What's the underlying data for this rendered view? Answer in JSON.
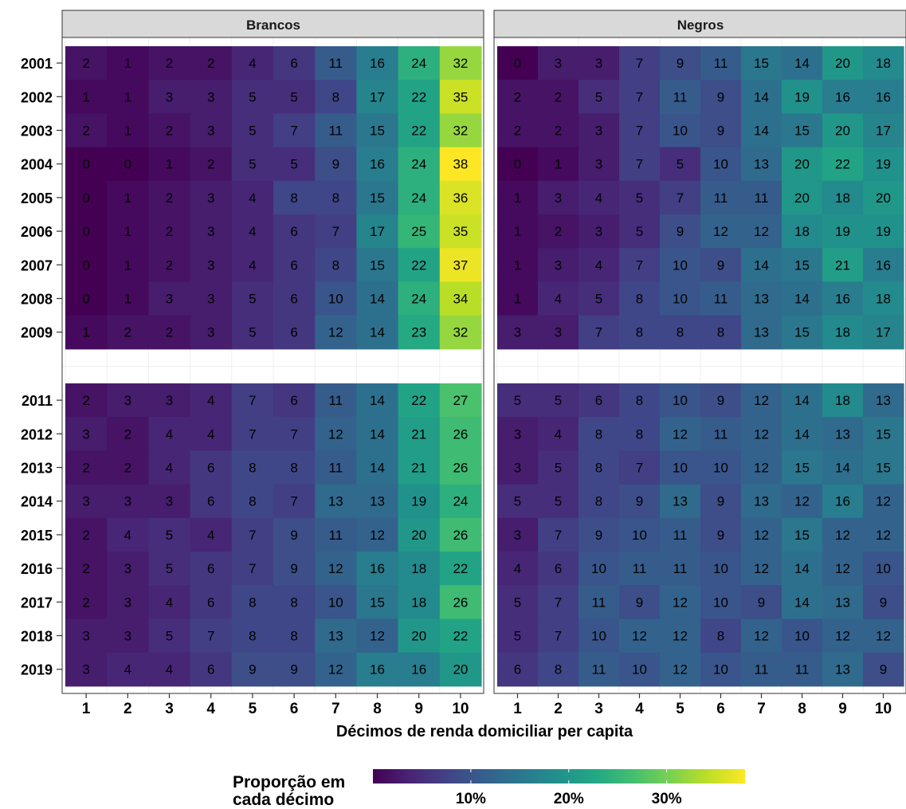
{
  "chart_data": {
    "type": "heatmap",
    "xlabel": "Décimos de renda domiciliar per capita",
    "x_categories": [
      "1",
      "2",
      "3",
      "4",
      "5",
      "6",
      "7",
      "8",
      "9",
      "10"
    ],
    "legend": {
      "title_lines": [
        "Proporção em",
        "cada décimo"
      ],
      "tick_values": [
        10,
        20,
        30
      ],
      "tick_labels": [
        "10%",
        "20%",
        "30%"
      ],
      "range": [
        0,
        38
      ],
      "placement": "bottom"
    },
    "facets": [
      {
        "name": "Brancos",
        "groups": [
          {
            "years": [
              "2001",
              "2002",
              "2003",
              "2004",
              "2005",
              "2006",
              "2007",
              "2008",
              "2009"
            ],
            "values": [
              [
                2,
                1,
                2,
                2,
                4,
                6,
                11,
                16,
                24,
                32
              ],
              [
                1,
                1,
                3,
                3,
                5,
                5,
                8,
                17,
                22,
                35
              ],
              [
                2,
                1,
                2,
                3,
                5,
                7,
                11,
                15,
                22,
                32
              ],
              [
                0,
                0,
                1,
                2,
                5,
                5,
                9,
                16,
                24,
                38
              ],
              [
                0,
                1,
                2,
                3,
                4,
                8,
                8,
                15,
                24,
                36
              ],
              [
                0,
                1,
                2,
                3,
                4,
                6,
                7,
                17,
                25,
                35
              ],
              [
                0,
                1,
                2,
                3,
                4,
                6,
                8,
                15,
                22,
                37
              ],
              [
                0,
                1,
                3,
                3,
                5,
                6,
                10,
                14,
                24,
                34
              ],
              [
                1,
                2,
                2,
                3,
                5,
                6,
                12,
                14,
                23,
                32
              ]
            ]
          },
          {
            "years": [
              "2011",
              "2012",
              "2013",
              "2014",
              "2015",
              "2016",
              "2017",
              "2018",
              "2019"
            ],
            "values": [
              [
                2,
                3,
                3,
                4,
                7,
                6,
                11,
                14,
                22,
                27
              ],
              [
                3,
                2,
                4,
                4,
                7,
                7,
                12,
                14,
                21,
                26
              ],
              [
                2,
                2,
                4,
                6,
                8,
                8,
                11,
                14,
                21,
                26
              ],
              [
                3,
                3,
                3,
                6,
                8,
                7,
                13,
                13,
                19,
                24
              ],
              [
                2,
                4,
                5,
                4,
                7,
                9,
                11,
                12,
                20,
                26
              ],
              [
                2,
                3,
                5,
                6,
                7,
                9,
                12,
                16,
                18,
                22
              ],
              [
                2,
                3,
                4,
                6,
                8,
                8,
                10,
                15,
                18,
                26
              ],
              [
                3,
                3,
                5,
                7,
                8,
                8,
                13,
                12,
                20,
                22
              ],
              [
                3,
                4,
                4,
                6,
                9,
                9,
                12,
                16,
                16,
                20
              ]
            ]
          }
        ]
      },
      {
        "name": "Negros",
        "groups": [
          {
            "years": [
              "2001",
              "2002",
              "2003",
              "2004",
              "2005",
              "2006",
              "2007",
              "2008",
              "2009"
            ],
            "values": [
              [
                0,
                3,
                3,
                7,
                9,
                11,
                15,
                14,
                20,
                18
              ],
              [
                2,
                2,
                5,
                7,
                11,
                9,
                14,
                19,
                16,
                16
              ],
              [
                2,
                2,
                3,
                7,
                10,
                9,
                14,
                15,
                20,
                17
              ],
              [
                0,
                1,
                3,
                7,
                5,
                10,
                13,
                20,
                22,
                19
              ],
              [
                1,
                3,
                4,
                5,
                7,
                11,
                11,
                20,
                18,
                20
              ],
              [
                1,
                2,
                3,
                5,
                9,
                12,
                12,
                18,
                19,
                19
              ],
              [
                1,
                3,
                4,
                7,
                10,
                9,
                14,
                15,
                21,
                16
              ],
              [
                1,
                4,
                5,
                8,
                10,
                11,
                13,
                14,
                16,
                18
              ],
              [
                3,
                3,
                7,
                8,
                8,
                8,
                13,
                15,
                18,
                17
              ]
            ]
          },
          {
            "years": [
              "2011",
              "2012",
              "2013",
              "2014",
              "2015",
              "2016",
              "2017",
              "2018",
              "2019"
            ],
            "values": [
              [
                5,
                5,
                6,
                8,
                10,
                9,
                12,
                14,
                18,
                13
              ],
              [
                3,
                4,
                8,
                8,
                12,
                11,
                12,
                14,
                13,
                15
              ],
              [
                3,
                5,
                8,
                7,
                10,
                10,
                12,
                15,
                14,
                15
              ],
              [
                5,
                5,
                8,
                9,
                13,
                9,
                13,
                12,
                16,
                12
              ],
              [
                3,
                7,
                9,
                10,
                11,
                9,
                12,
                15,
                12,
                12
              ],
              [
                4,
                6,
                10,
                11,
                11,
                10,
                12,
                14,
                12,
                10
              ],
              [
                5,
                7,
                11,
                9,
                12,
                10,
                9,
                14,
                13,
                9
              ],
              [
                5,
                7,
                10,
                12,
                12,
                8,
                12,
                10,
                12,
                12
              ],
              [
                6,
                8,
                11,
                10,
                12,
                10,
                11,
                11,
                13,
                9
              ]
            ]
          }
        ]
      }
    ]
  }
}
